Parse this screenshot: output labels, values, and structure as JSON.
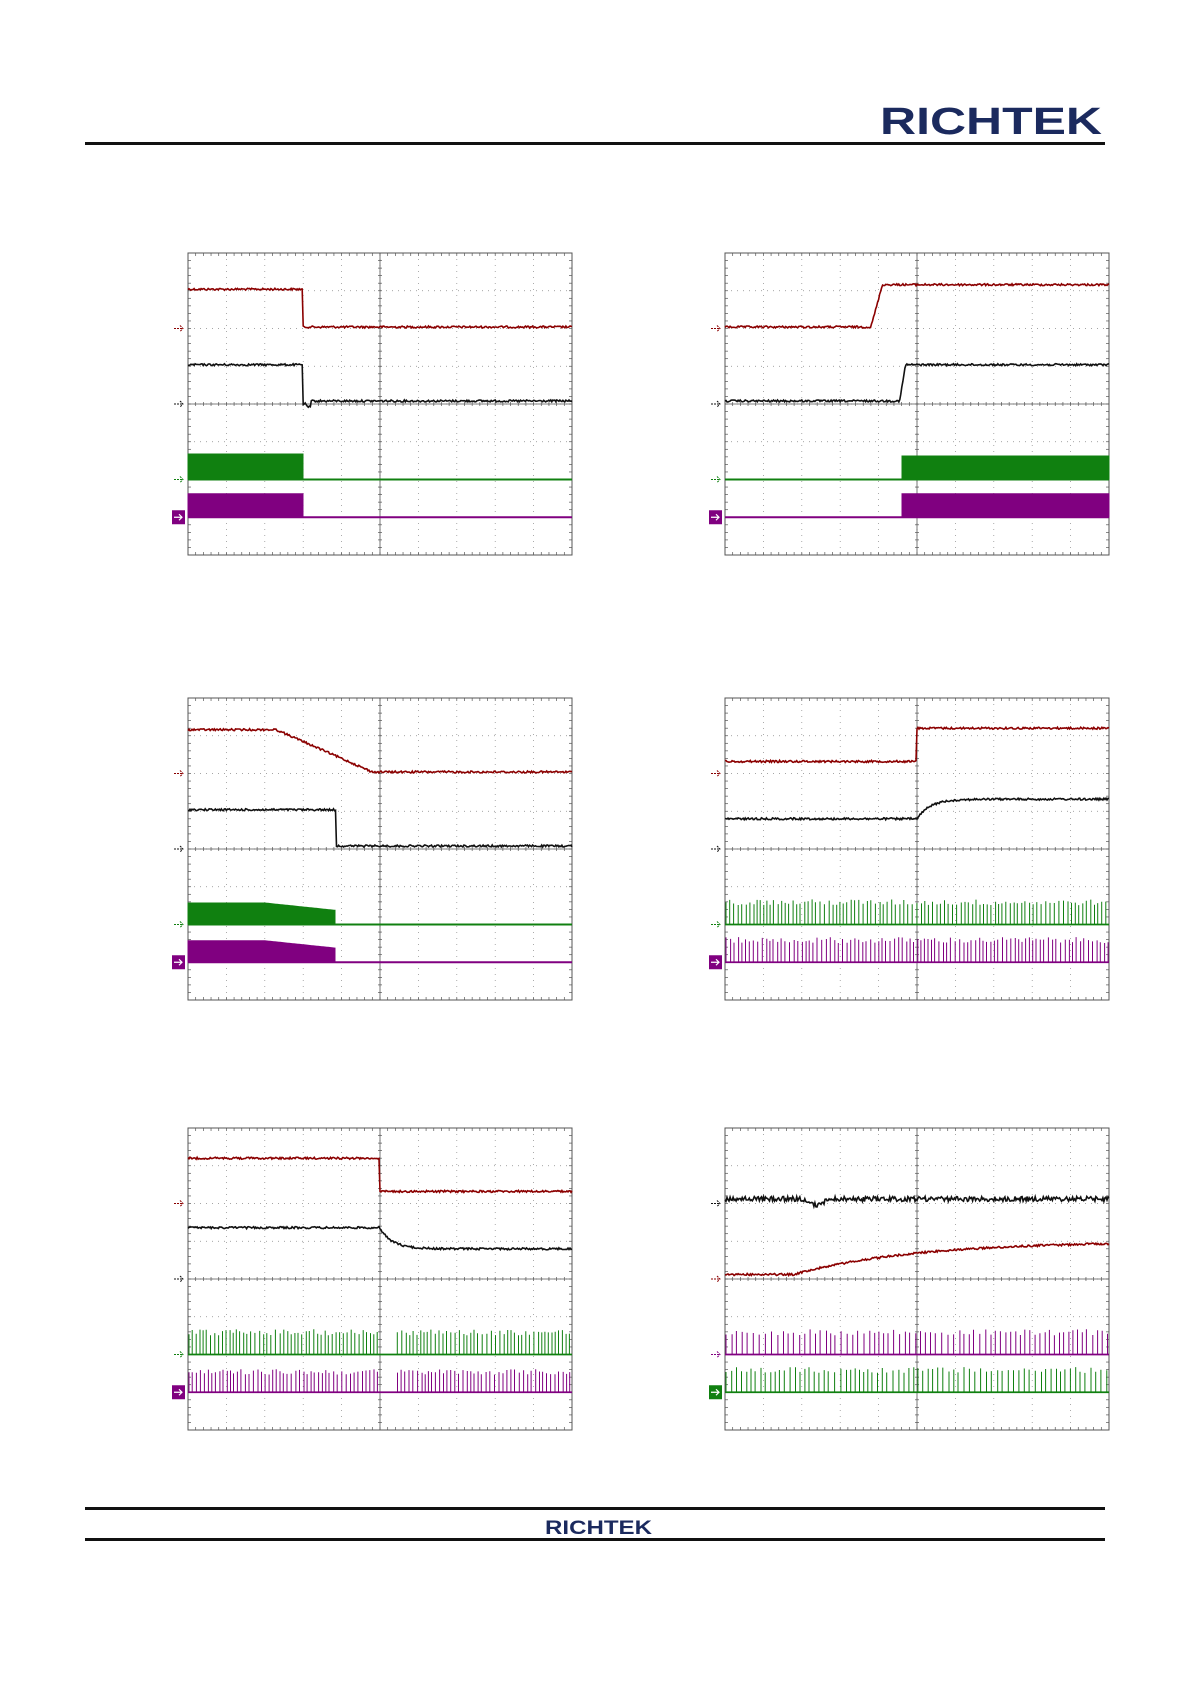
{
  "header": {
    "logo_text": "RICHTEK"
  },
  "footer": {
    "logo_text": "RICHTEK"
  },
  "colors": {
    "ch1": "#8b0000",
    "ch2": "#111111",
    "ch3": "#108010",
    "ch4": "#800080",
    "brand": "#1b2a5e",
    "grid": "#555555"
  },
  "scopes": [
    {
      "id": "scope-1",
      "pattern": "step-down-stop-switching"
    },
    {
      "id": "scope-2",
      "pattern": "step-up-start-switching"
    },
    {
      "id": "scope-3",
      "pattern": "ramp-down-stop-switching"
    },
    {
      "id": "scope-4",
      "pattern": "step-up-burst"
    },
    {
      "id": "scope-5",
      "pattern": "step-down-burst"
    },
    {
      "id": "scope-6",
      "pattern": "ramp-up-burst"
    }
  ]
}
